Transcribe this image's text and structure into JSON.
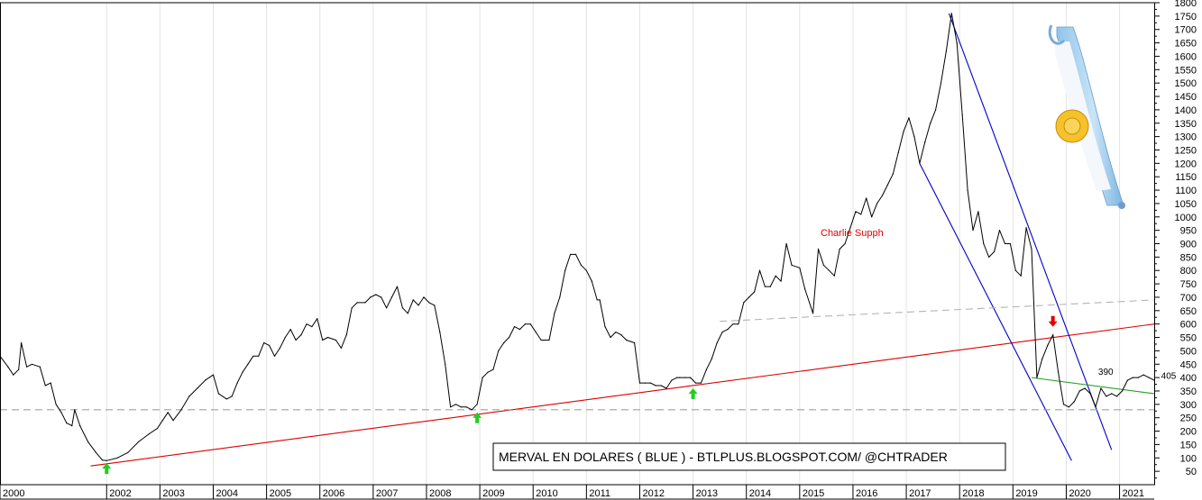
{
  "chart_data": {
    "type": "line",
    "title": "MERVAL EN DOLARES ( BLUE ) - BTLPLUS.BLOGSPOT.COM/ @CHTRADER",
    "watermark": "Charlie Supph",
    "xlabel": "",
    "ylabel": "",
    "ylim": [
      0,
      1800
    ],
    "xlim": [
      2000.0,
      2021.65
    ],
    "y_axis_side": "right",
    "grid": true,
    "yticks": [
      50,
      100,
      150,
      200,
      250,
      300,
      350,
      400,
      450,
      500,
      550,
      600,
      650,
      700,
      750,
      800,
      850,
      900,
      950,
      1000,
      1050,
      1100,
      1150,
      1200,
      1250,
      1300,
      1350,
      1400,
      1450,
      1500,
      1550,
      1600,
      1650,
      1700,
      1750,
      1800
    ],
    "xticks": [
      {
        "x": 2000,
        "label": "2000"
      },
      {
        "x": 2002,
        "label": "2002"
      },
      {
        "x": 2003,
        "label": "2003"
      },
      {
        "x": 2004,
        "label": "2004"
      },
      {
        "x": 2005,
        "label": "2005"
      },
      {
        "x": 2006,
        "label": "2006"
      },
      {
        "x": 2007,
        "label": "2007"
      },
      {
        "x": 2008,
        "label": "2008"
      },
      {
        "x": 2009,
        "label": "2009"
      },
      {
        "x": 2010,
        "label": "2010"
      },
      {
        "x": 2011,
        "label": "2011"
      },
      {
        "x": 2012,
        "label": "2012"
      },
      {
        "x": 2013,
        "label": "2013"
      },
      {
        "x": 2014,
        "label": "2014"
      },
      {
        "x": 2015,
        "label": "2015"
      },
      {
        "x": 2016,
        "label": "2016"
      },
      {
        "x": 2017,
        "label": "2017"
      },
      {
        "x": 2018,
        "label": "2018"
      },
      {
        "x": 2019,
        "label": "2019"
      },
      {
        "x": 2020,
        "label": "2020"
      },
      {
        "x": 2021,
        "label": "2021"
      }
    ],
    "series": [
      {
        "color": "#000000",
        "points": [
          [
            2000.0,
            480
          ],
          [
            2000.15,
            440
          ],
          [
            2000.25,
            410
          ],
          [
            2000.35,
            430
          ],
          [
            2000.4,
            530
          ],
          [
            2000.5,
            440
          ],
          [
            2000.6,
            450
          ],
          [
            2000.75,
            440
          ],
          [
            2000.85,
            370
          ],
          [
            2000.95,
            380
          ],
          [
            2001.05,
            300
          ],
          [
            2001.15,
            270
          ],
          [
            2001.25,
            230
          ],
          [
            2001.35,
            220
          ],
          [
            2001.4,
            280
          ],
          [
            2001.5,
            220
          ],
          [
            2001.65,
            160
          ],
          [
            2001.8,
            120
          ],
          [
            2001.92,
            92
          ],
          [
            2002.0,
            90
          ],
          [
            2002.2,
            100
          ],
          [
            2002.4,
            120
          ],
          [
            2002.6,
            160
          ],
          [
            2002.8,
            190
          ],
          [
            2002.95,
            210
          ],
          [
            2003.05,
            240
          ],
          [
            2003.15,
            270
          ],
          [
            2003.25,
            240
          ],
          [
            2003.4,
            280
          ],
          [
            2003.55,
            330
          ],
          [
            2003.7,
            360
          ],
          [
            2003.85,
            390
          ],
          [
            2004.0,
            410
          ],
          [
            2004.1,
            340
          ],
          [
            2004.25,
            320
          ],
          [
            2004.35,
            330
          ],
          [
            2004.45,
            380
          ],
          [
            2004.55,
            420
          ],
          [
            2004.65,
            450
          ],
          [
            2004.75,
            480
          ],
          [
            2004.85,
            480
          ],
          [
            2004.95,
            530
          ],
          [
            2005.05,
            520
          ],
          [
            2005.15,
            480
          ],
          [
            2005.25,
            510
          ],
          [
            2005.35,
            550
          ],
          [
            2005.45,
            580
          ],
          [
            2005.55,
            540
          ],
          [
            2005.65,
            560
          ],
          [
            2005.75,
            600
          ],
          [
            2005.85,
            590
          ],
          [
            2005.95,
            620
          ],
          [
            2006.05,
            540
          ],
          [
            2006.15,
            550
          ],
          [
            2006.3,
            540
          ],
          [
            2006.4,
            510
          ],
          [
            2006.5,
            560
          ],
          [
            2006.6,
            660
          ],
          [
            2006.7,
            680
          ],
          [
            2006.85,
            680
          ],
          [
            2006.95,
            700
          ],
          [
            2007.05,
            710
          ],
          [
            2007.15,
            700
          ],
          [
            2007.25,
            660
          ],
          [
            2007.35,
            700
          ],
          [
            2007.45,
            740
          ],
          [
            2007.55,
            660
          ],
          [
            2007.65,
            640
          ],
          [
            2007.75,
            690
          ],
          [
            2007.85,
            670
          ],
          [
            2007.95,
            700
          ],
          [
            2008.05,
            680
          ],
          [
            2008.15,
            670
          ],
          [
            2008.25,
            570
          ],
          [
            2008.35,
            450
          ],
          [
            2008.45,
            290
          ],
          [
            2008.55,
            300
          ],
          [
            2008.65,
            290
          ],
          [
            2008.75,
            290
          ],
          [
            2008.85,
            280
          ],
          [
            2008.95,
            300
          ],
          [
            2009.05,
            400
          ],
          [
            2009.15,
            420
          ],
          [
            2009.25,
            430
          ],
          [
            2009.35,
            500
          ],
          [
            2009.45,
            530
          ],
          [
            2009.55,
            550
          ],
          [
            2009.65,
            590
          ],
          [
            2009.75,
            580
          ],
          [
            2009.85,
            600
          ],
          [
            2009.95,
            600
          ],
          [
            2010.05,
            570
          ],
          [
            2010.15,
            540
          ],
          [
            2010.3,
            540
          ],
          [
            2010.4,
            640
          ],
          [
            2010.5,
            700
          ],
          [
            2010.6,
            800
          ],
          [
            2010.7,
            860
          ],
          [
            2010.8,
            860
          ],
          [
            2010.9,
            820
          ],
          [
            2011.0,
            800
          ],
          [
            2011.1,
            760
          ],
          [
            2011.2,
            690
          ],
          [
            2011.25,
            690
          ],
          [
            2011.35,
            590
          ],
          [
            2011.45,
            550
          ],
          [
            2011.55,
            570
          ],
          [
            2011.65,
            560
          ],
          [
            2011.75,
            540
          ],
          [
            2011.9,
            530
          ],
          [
            2012.0,
            380
          ],
          [
            2012.1,
            380
          ],
          [
            2012.2,
            380
          ],
          [
            2012.3,
            370
          ],
          [
            2012.4,
            370
          ],
          [
            2012.5,
            360
          ],
          [
            2012.6,
            390
          ],
          [
            2012.7,
            400
          ],
          [
            2012.75,
            400
          ],
          [
            2012.85,
            400
          ],
          [
            2012.95,
            400
          ],
          [
            2013.05,
            380
          ],
          [
            2013.15,
            380
          ],
          [
            2013.25,
            430
          ],
          [
            2013.35,
            470
          ],
          [
            2013.45,
            530
          ],
          [
            2013.55,
            570
          ],
          [
            2013.65,
            580
          ],
          [
            2013.75,
            600
          ],
          [
            2013.85,
            600
          ],
          [
            2013.95,
            680
          ],
          [
            2014.05,
            700
          ],
          [
            2014.15,
            720
          ],
          [
            2014.25,
            800
          ],
          [
            2014.35,
            740
          ],
          [
            2014.45,
            740
          ],
          [
            2014.55,
            780
          ],
          [
            2014.65,
            760
          ],
          [
            2014.75,
            900
          ],
          [
            2014.85,
            820
          ],
          [
            2015.0,
            810
          ],
          [
            2015.1,
            730
          ],
          [
            2015.25,
            640
          ],
          [
            2015.35,
            880
          ],
          [
            2015.45,
            820
          ],
          [
            2015.55,
            800
          ],
          [
            2015.65,
            780
          ],
          [
            2015.75,
            880
          ],
          [
            2015.85,
            900
          ],
          [
            2015.95,
            960
          ],
          [
            2016.05,
            1020
          ],
          [
            2016.15,
            1010
          ],
          [
            2016.25,
            1070
          ],
          [
            2016.35,
            1000
          ],
          [
            2016.45,
            1050
          ],
          [
            2016.55,
            1080
          ],
          [
            2016.65,
            1120
          ],
          [
            2016.75,
            1160
          ],
          [
            2016.85,
            1240
          ],
          [
            2016.95,
            1320
          ],
          [
            2017.05,
            1370
          ],
          [
            2017.15,
            1300
          ],
          [
            2017.25,
            1200
          ],
          [
            2017.35,
            1280
          ],
          [
            2017.45,
            1350
          ],
          [
            2017.55,
            1400
          ],
          [
            2017.65,
            1500
          ],
          [
            2017.75,
            1620
          ],
          [
            2017.85,
            1760
          ],
          [
            2017.95,
            1650
          ],
          [
            2018.05,
            1380
          ],
          [
            2018.15,
            1100
          ],
          [
            2018.25,
            950
          ],
          [
            2018.35,
            1020
          ],
          [
            2018.45,
            900
          ],
          [
            2018.55,
            850
          ],
          [
            2018.65,
            870
          ],
          [
            2018.75,
            950
          ],
          [
            2018.85,
            900
          ],
          [
            2018.95,
            900
          ],
          [
            2019.05,
            800
          ],
          [
            2019.15,
            780
          ],
          [
            2019.25,
            960
          ],
          [
            2019.35,
            880
          ],
          [
            2019.45,
            400
          ],
          [
            2019.55,
            470
          ],
          [
            2019.65,
            520
          ],
          [
            2019.75,
            560
          ],
          [
            2019.85,
            420
          ],
          [
            2019.95,
            300
          ],
          [
            2020.05,
            290
          ],
          [
            2020.15,
            310
          ],
          [
            2020.25,
            350
          ],
          [
            2020.35,
            360
          ],
          [
            2020.45,
            340
          ],
          [
            2020.55,
            290
          ],
          [
            2020.65,
            360
          ],
          [
            2020.75,
            330
          ],
          [
            2020.85,
            340
          ],
          [
            2020.95,
            330
          ],
          [
            2021.05,
            350
          ],
          [
            2021.15,
            390
          ],
          [
            2021.25,
            400
          ],
          [
            2021.35,
            400
          ],
          [
            2021.45,
            410
          ],
          [
            2021.55,
            400
          ],
          [
            2021.65,
            390
          ]
        ]
      }
    ],
    "trendlines": [
      {
        "name": "red-support",
        "color": "#dc0000",
        "from": [
          2001.7,
          70
        ],
        "to": [
          2021.65,
          600
        ]
      },
      {
        "name": "blue-channel-upper",
        "color": "#0000c8",
        "from": [
          2017.8,
          1760
        ],
        "to": [
          2020.85,
          130
        ]
      },
      {
        "name": "blue-channel-lower",
        "color": "#0000c8",
        "from": [
          2017.25,
          1200
        ],
        "to": [
          2020.1,
          90
        ]
      },
      {
        "name": "green-line",
        "color": "#22a022",
        "from": [
          2019.35,
          400
        ],
        "to": [
          2021.65,
          340
        ]
      },
      {
        "name": "gray-dash-top",
        "color": "#b4b4b4",
        "from": [
          2013.5,
          610
        ],
        "to": [
          2021.65,
          690
        ],
        "dashed": true
      },
      {
        "name": "gray-dash-bottom",
        "color": "#a0a0a0",
        "from": [
          2000.0,
          280
        ],
        "to": [
          2021.65,
          280
        ],
        "dashed": true
      }
    ],
    "markers": [
      {
        "type": "up",
        "color": "#22cc22",
        "x": 2002.0,
        "y": 60
      },
      {
        "type": "up",
        "color": "#22cc22",
        "x": 2008.95,
        "y": 250
      },
      {
        "type": "up",
        "color": "#22cc22",
        "x": 2013.0,
        "y": 340
      },
      {
        "type": "down",
        "color": "#e00000",
        "x": 2019.75,
        "y": 610
      }
    ],
    "labels": [
      {
        "text": "390",
        "x": 2020.6,
        "y": 420
      },
      {
        "text": "405",
        "x": 2021.78,
        "y": 405
      }
    ]
  }
}
